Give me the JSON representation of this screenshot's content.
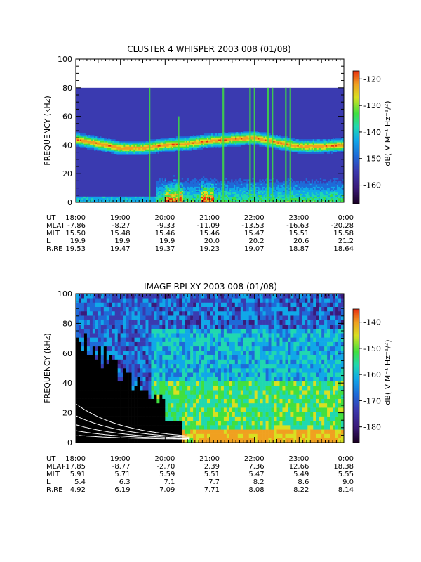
{
  "colors": {
    "background": "#ffffff",
    "colormap": [
      "#1a0022",
      "#3a1a7a",
      "#3a3ab0",
      "#1e6ad8",
      "#10a8e8",
      "#20d8b0",
      "#40e040",
      "#d8e020",
      "#f0a020",
      "#e83010"
    ]
  },
  "chart_data": [
    {
      "type": "heatmap",
      "title": "CLUSTER 4 WHISPER 2003 008 (01/08)",
      "ylabel": "FREQUENCY (kHz)",
      "ylim": [
        0,
        100
      ],
      "yticks": [
        "0",
        "20",
        "40",
        "60",
        "80",
        "100"
      ],
      "data_extent_khz": [
        0,
        80
      ],
      "colorbar_label": "dB( V M⁻¹ Hz⁻¹/²)",
      "colorbar_ticks": [
        "-120",
        "-130",
        "-140",
        "-150",
        "-160"
      ],
      "colorbar_range": [
        -167,
        -117
      ],
      "x_ticks": [
        "18:00",
        "19:00",
        "20:00",
        "21:00",
        "22:00",
        "23:00",
        "0:00"
      ],
      "emission_band": {
        "hours": [
          18.0,
          18.5,
          19.0,
          19.5,
          20.0,
          20.5,
          21.0,
          21.5,
          22.0,
          22.5,
          23.0,
          23.5,
          24.0
        ],
        "freq_khz": [
          44,
          41,
          38,
          38,
          40,
          41,
          43,
          44,
          45,
          42,
          39,
          39,
          40
        ]
      },
      "bursts": [
        {
          "hour": 19.65,
          "top_khz": 80
        },
        {
          "hour": 20.3,
          "top_khz": 60
        },
        {
          "hour": 21.3,
          "top_khz": 80
        },
        {
          "hour": 21.9,
          "top_khz": 80
        },
        {
          "hour": 22.0,
          "top_khz": 80
        },
        {
          "hour": 22.3,
          "top_khz": 80
        },
        {
          "hour": 22.4,
          "top_khz": 80
        },
        {
          "hour": 22.7,
          "top_khz": 80
        },
        {
          "hour": 22.8,
          "top_khz": 80
        }
      ],
      "ephemeris": {
        "labels": [
          "UT",
          "MLAT",
          "MLT",
          "L",
          "R,RE"
        ],
        "rows": [
          [
            "18:00",
            "19:00",
            "20:00",
            "21:00",
            "22:00",
            "23:00",
            "0:00"
          ],
          [
            "-7.86",
            "-8.27",
            "-9.33",
            "-11.09",
            "-13.53",
            "-16.63",
            "-20.28"
          ],
          [
            "15.50",
            "15.48",
            "15.46",
            "15.46",
            "15.47",
            "15.51",
            "15.58"
          ],
          [
            "19.9",
            "19.9",
            "19.9",
            "20.0",
            "20.2",
            "20.6",
            "21.2"
          ],
          [
            "19.53",
            "19.47",
            "19.37",
            "19.23",
            "19.07",
            "18.87",
            "18.64"
          ]
        ]
      }
    },
    {
      "type": "heatmap",
      "title": "IMAGE RPI XY 2003 008 (01/08)",
      "ylabel": "FREQUENCY (kHz)",
      "ylim": [
        0,
        100
      ],
      "yticks": [
        "0",
        "20",
        "40",
        "60",
        "80",
        "100"
      ],
      "colorbar_label": "dB( V M⁻¹ Hz⁻¹/²)",
      "colorbar_ticks": [
        "-140",
        "-150",
        "-160",
        "-170",
        "-180"
      ],
      "colorbar_range": [
        -186,
        -135
      ],
      "x_ticks": [
        "18:00",
        "19:00",
        "20:00",
        "21:00",
        "22:00",
        "23:00",
        "0:00"
      ],
      "marker_hour": 20.6,
      "ephemeris": {
        "labels": [
          "UT",
          "MLAT",
          "MLT",
          "L",
          "R,RE"
        ],
        "rows": [
          [
            "18:00",
            "19:00",
            "20:00",
            "21:00",
            "22:00",
            "23:00",
            "0:00"
          ],
          [
            "-17.85",
            "-8.77",
            "-2.70",
            "2.39",
            "7.36",
            "12.66",
            "18.38"
          ],
          [
            "5.91",
            "5.71",
            "5.59",
            "5.51",
            "5.47",
            "5.49",
            "5.55"
          ],
          [
            "5.4",
            "6.3",
            "7.1",
            "7.7",
            "8.2",
            "8.6",
            "9.0"
          ],
          [
            "4.92",
            "6.19",
            "7.09",
            "7.71",
            "8.08",
            "8.22",
            "8.14"
          ]
        ]
      }
    }
  ]
}
